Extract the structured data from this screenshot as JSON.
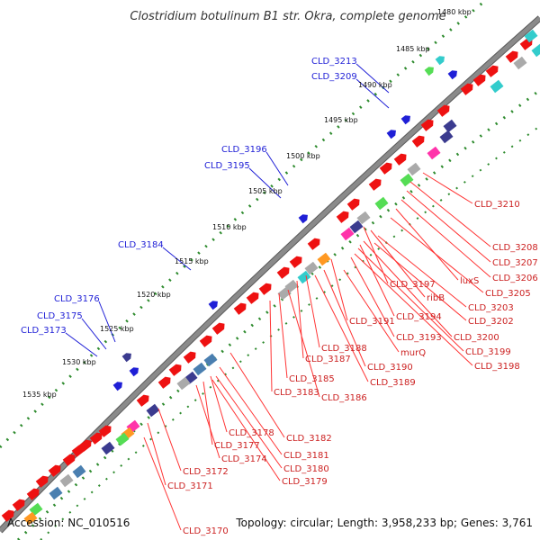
{
  "title": "Clostridium botulinum B1 str. Okra, complete genome",
  "accession_text": "Accession: NC_010516",
  "summary_text": "Topology: circular; Length: 3,958,233 bp; Genes: 3,761",
  "colors": {
    "background": "#ffffff",
    "backbone": "#8a8a8a",
    "backbone_edge": "#5a5a5a",
    "tick_dot": "#2e8b2e",
    "outer_track": "#1f1fd6",
    "forward_gene": "#ee1111",
    "label_line_outer": "#1f1fd6",
    "label_line_inner": "#ff3333",
    "cog_palette": [
      "#2a2a6e",
      "#3b3b8f",
      "#4a7fb0",
      "#33cccc",
      "#55dd55",
      "#ff9922",
      "#ff33aa",
      "#aaaaaa",
      "#99ccdd"
    ]
  },
  "kbp_labels": [
    "1480 kbp",
    "1485 kbp",
    "1490 kbp",
    "1495 kbp",
    "1500 kbp",
    "1505 kbp",
    "1510 kbp",
    "1515 kbp",
    "1520 kbp",
    "1525 kbp",
    "1530 kbp",
    "1535 kbp"
  ],
  "outer_labels": [
    "CLD_3213",
    "CLD_3209",
    "CLD_3196",
    "CLD_3195",
    "CLD_3184",
    "CLD_3176",
    "CLD_3175",
    "CLD_3173"
  ],
  "inner_labels": [
    "CLD_3210",
    "CLD_3208",
    "CLD_3207",
    "CLD_3206",
    "luxS",
    "CLD_3205",
    "CLD_3197",
    "ribB",
    "CLD_3203",
    "CLD_3202",
    "CLD_3194",
    "CLD_3191",
    "CLD_3193",
    "CLD_3200",
    "CLD_3199",
    "murQ",
    "CLD_3198",
    "CLD_3188",
    "CLD_3187",
    "CLD_3190",
    "CLD_3189",
    "CLD_3185",
    "CLD_3183",
    "CLD_3186",
    "CLD_3182",
    "CLD_3178",
    "CLD_3177",
    "CLD_3181",
    "CLD_3174",
    "CLD_3180",
    "CLD_3172",
    "CLD_3179",
    "CLD_3171",
    "CLD_3170"
  ]
}
